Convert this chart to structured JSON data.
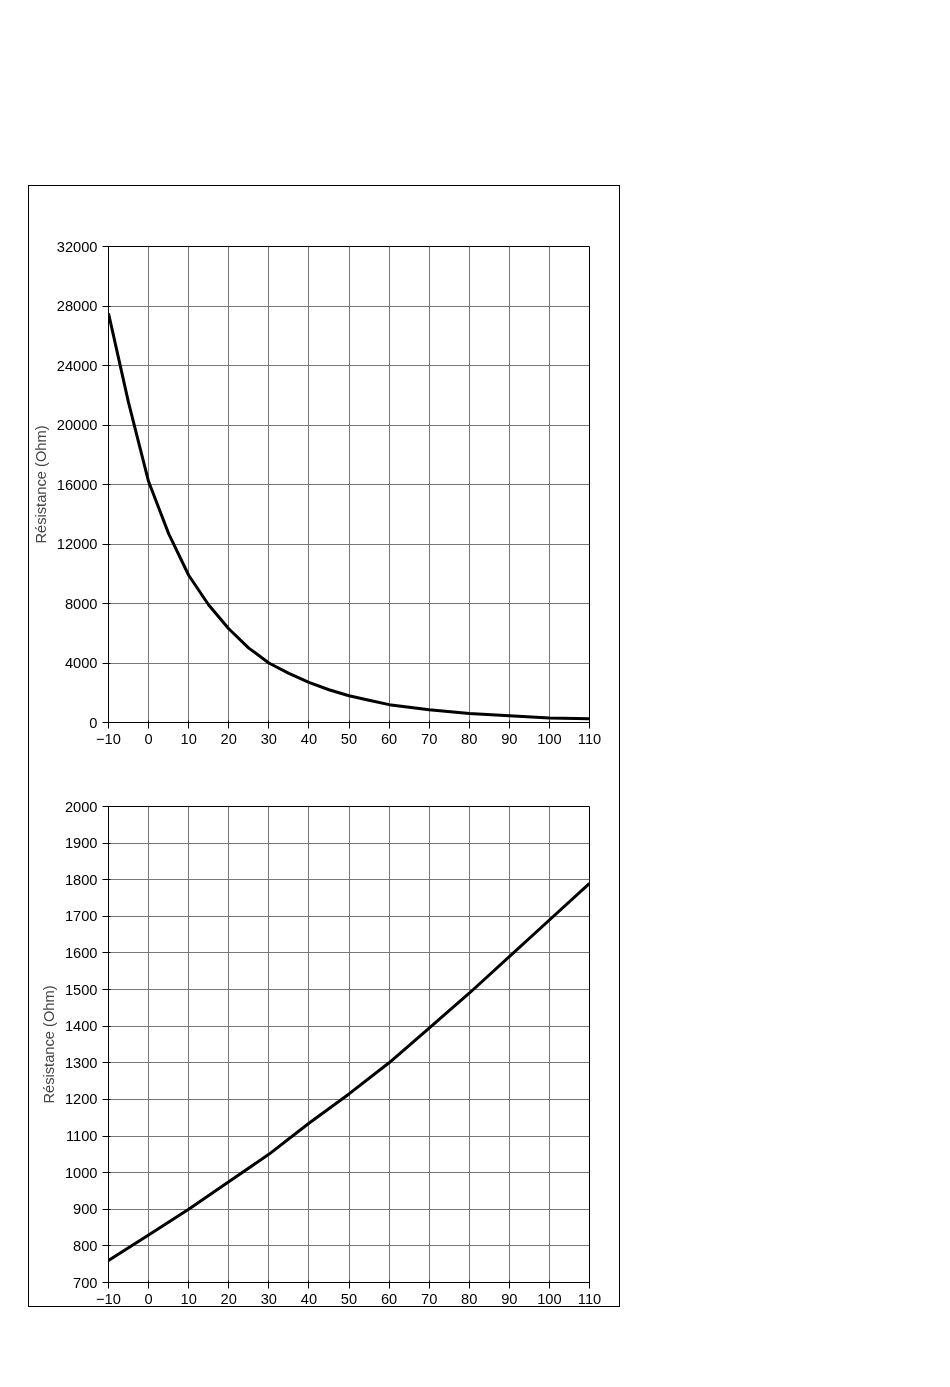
{
  "chart_data": [
    {
      "type": "line",
      "ylabel": "Résistance (Ohm)",
      "x": [
        -10,
        -5,
        0,
        5,
        10,
        15,
        20,
        25,
        30,
        35,
        40,
        45,
        50,
        55,
        60,
        70,
        80,
        90,
        100,
        110
      ],
      "series": [
        {
          "color": "#000000",
          "values": [
            27500,
            21500,
            16200,
            12700,
            9900,
            7900,
            6300,
            5000,
            4000,
            3300,
            2700,
            2200,
            1800,
            1500,
            1200,
            850,
            600,
            450,
            300,
            250
          ]
        }
      ],
      "xlim": [
        -10,
        110
      ],
      "xticks": [
        -10,
        0,
        10,
        20,
        30,
        40,
        50,
        60,
        70,
        80,
        90,
        100,
        110
      ],
      "ylim": [
        0,
        32000
      ],
      "yticks": [
        0,
        4000,
        8000,
        12000,
        16000,
        20000,
        24000,
        28000,
        32000
      ],
      "grid": true,
      "marker": "none",
      "line_style": "solid"
    },
    {
      "type": "line",
      "ylabel": "Résistance (Ohm)",
      "x": [
        -10,
        0,
        10,
        20,
        30,
        40,
        50,
        60,
        70,
        80,
        90,
        100,
        110
      ],
      "series": [
        {
          "color": "#000000",
          "values": [
            760,
            830,
            900,
            975,
            1050,
            1135,
            1215,
            1300,
            1395,
            1490,
            1590,
            1690,
            1790
          ]
        }
      ],
      "xlim": [
        -10,
        110
      ],
      "xticks": [
        -10,
        0,
        10,
        20,
        30,
        40,
        50,
        60,
        70,
        80,
        90,
        100,
        110
      ],
      "ylim": [
        700,
        2000
      ],
      "yticks": [
        700,
        800,
        900,
        1000,
        1100,
        1200,
        1300,
        1400,
        1500,
        1600,
        1700,
        1800,
        1900,
        2000
      ],
      "grid": true,
      "marker": "none",
      "line_style": "solid"
    }
  ]
}
